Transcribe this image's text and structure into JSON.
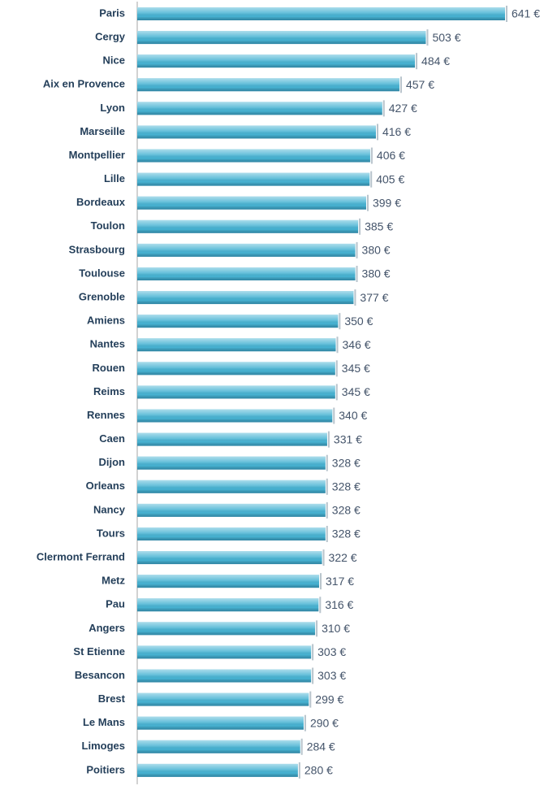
{
  "chart_data": {
    "type": "bar",
    "orientation": "horizontal",
    "color": "#47b3d3",
    "categories": [
      "Paris",
      "Cergy",
      "Nice",
      "Aix en Provence",
      "Lyon",
      "Marseille",
      "Montpellier",
      "Lille",
      "Bordeaux",
      "Toulon",
      "Strasbourg",
      "Toulouse",
      "Grenoble",
      "Amiens",
      "Nantes",
      "Rouen",
      "Reims",
      "Rennes",
      "Caen",
      "Dijon",
      "Orleans",
      "Nancy",
      "Tours",
      "Clermont Ferrand",
      "Metz",
      "Pau",
      "Angers",
      "St Etienne",
      "Besancon",
      "Brest",
      "Le Mans",
      "Limoges",
      "Poitiers"
    ],
    "values": [
      641,
      503,
      484,
      457,
      427,
      416,
      406,
      405,
      399,
      385,
      380,
      380,
      377,
      350,
      346,
      345,
      345,
      340,
      331,
      328,
      328,
      328,
      328,
      322,
      317,
      316,
      310,
      303,
      303,
      299,
      290,
      284,
      280
    ],
    "value_labels": [
      "641 €",
      "503 €",
      "484 €",
      "457 €",
      "427 €",
      "416 €",
      "406 €",
      "405 €",
      "399 €",
      "385 €",
      "380 €",
      "380 €",
      "377 €",
      "350 €",
      "346 €",
      "345 €",
      "345 €",
      "340 €",
      "331 €",
      "328 €",
      "328 €",
      "328 €",
      "328 €",
      "322 €",
      "317 €",
      "316 €",
      "310 €",
      "303 €",
      "303 €",
      "299 €",
      "290 €",
      "284 €",
      "280 €"
    ]
  }
}
